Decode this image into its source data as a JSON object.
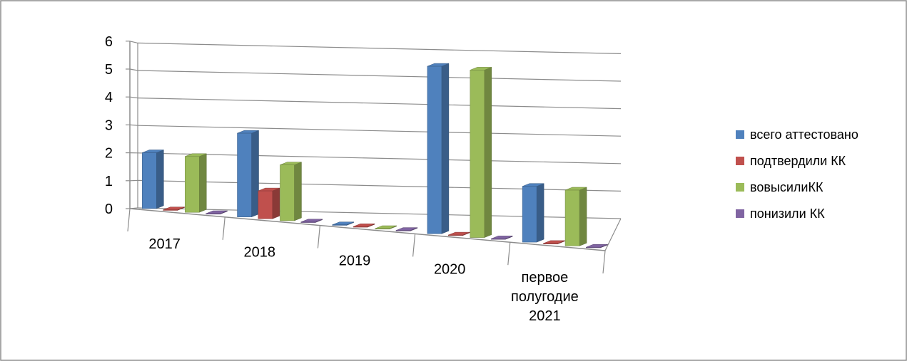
{
  "chart_data": {
    "type": "bar",
    "categories": [
      "2017",
      "2018",
      "2019",
      "2020",
      "первое полугодие 2021"
    ],
    "category_lines": [
      [
        "2017"
      ],
      [
        "2018"
      ],
      [
        "2019"
      ],
      [
        "2020"
      ],
      [
        "первое",
        "полугодие",
        "2021"
      ]
    ],
    "series": [
      {
        "name": "всего аттестовано",
        "values": [
          2,
          3,
          0,
          6,
          2
        ],
        "color": "#4F81BD"
      },
      {
        "name": "подтвердили КК",
        "values": [
          0,
          1,
          0,
          0,
          0
        ],
        "color": "#C0504D"
      },
      {
        "name": "вовысилиКК",
        "values": [
          2,
          2,
          0,
          6,
          2
        ],
        "color": "#9BBB59"
      },
      {
        "name": "понизили КК",
        "values": [
          0,
          0,
          0,
          0,
          0
        ],
        "color": "#8064A2"
      }
    ],
    "y_ticks": [
      "0",
      "1",
      "2",
      "3",
      "4",
      "5",
      "6"
    ],
    "ylim": [
      0,
      6
    ],
    "grid": true,
    "legend": "right",
    "style": "3d-clustered-column"
  }
}
